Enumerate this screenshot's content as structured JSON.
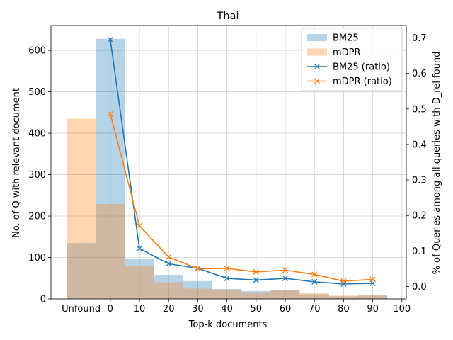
{
  "chart_data": {
    "type": "bar",
    "title": "Thai",
    "xlabel": "Top-k documents",
    "ylabel": "No. of Q with relevant document",
    "y2label": "% of Queries among all queries with D_rel found",
    "x_tick_labels": [
      "Unfound",
      "0",
      "10",
      "20",
      "30",
      "40",
      "50",
      "60",
      "70",
      "80",
      "90",
      "100"
    ],
    "y_ticks": [
      0,
      100,
      200,
      300,
      400,
      500,
      600
    ],
    "y2_ticks": [
      "0.0",
      "0.1",
      "0.2",
      "0.3",
      "0.4",
      "0.5",
      "0.6",
      "0.7"
    ],
    "ylim": [
      0,
      660
    ],
    "y2lim": [
      -0.035,
      0.735
    ],
    "bins": [
      "Unfound",
      "0-10",
      "10-20",
      "20-30",
      "30-40",
      "40-50",
      "50-60",
      "60-70",
      "70-80",
      "80-90",
      "90-100"
    ],
    "series": [
      {
        "name": "BM25",
        "kind": "bar",
        "color": "#1f77b4",
        "values": [
          135,
          628,
          97,
          58,
          43,
          24,
          19,
          21,
          11,
          6,
          8
        ]
      },
      {
        "name": "mDPR",
        "kind": "bar",
        "color": "#ff7f0e",
        "values": [
          435,
          229,
          80,
          40,
          25,
          21,
          16,
          22,
          15,
          8,
          10
        ]
      }
    ],
    "ratio_series": [
      {
        "name": "BM25 (ratio)",
        "color": "#1f77b4",
        "x": [
          5,
          15,
          25,
          35,
          45,
          55,
          65,
          75,
          85,
          95
        ],
        "values": [
          0.695,
          0.107,
          0.064,
          0.051,
          0.023,
          0.018,
          0.023,
          0.013,
          0.007,
          0.009
        ]
      },
      {
        "name": "mDPR (ratio)",
        "color": "#ff7f0e",
        "x": [
          5,
          15,
          25,
          35,
          45,
          55,
          65,
          75,
          85,
          95
        ],
        "values": [
          0.486,
          0.171,
          0.083,
          0.05,
          0.051,
          0.041,
          0.046,
          0.034,
          0.015,
          0.02
        ]
      }
    ],
    "grid": true,
    "legend_position": "top-right"
  }
}
